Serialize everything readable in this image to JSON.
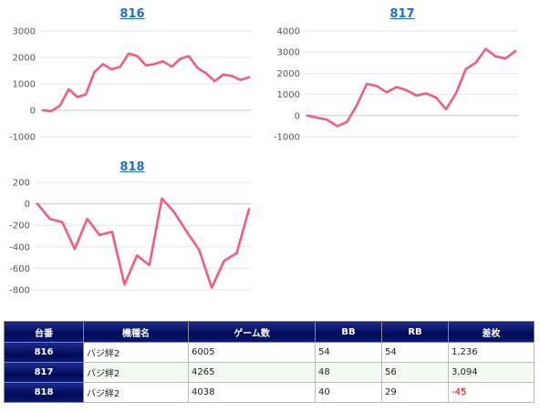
{
  "colors": {
    "line": "#f25c7f",
    "title": "#1f6fd0",
    "header_bg": "#000a55",
    "negative": "#e00000"
  },
  "chart_data": [
    {
      "type": "line",
      "title": "816",
      "ylim": [
        -1000,
        3000
      ],
      "yticks": [
        -1000,
        0,
        1000,
        2000,
        3000
      ],
      "grid": true,
      "series": [
        {
          "values": [
            0,
            -30,
            180,
            800,
            500,
            600,
            1450,
            1750,
            1550,
            1650,
            2150,
            2050,
            1700,
            1750,
            1850,
            1650,
            1950,
            2050,
            1600,
            1400,
            1100,
            1350,
            1300,
            1150,
            1250
          ]
        }
      ]
    },
    {
      "type": "line",
      "title": "817",
      "ylim": [
        -1000,
        4000
      ],
      "yticks": [
        -1000,
        0,
        1000,
        2000,
        3000,
        4000
      ],
      "grid": true,
      "series": [
        {
          "values": [
            0,
            -100,
            -200,
            -500,
            -300,
            500,
            1500,
            1400,
            1100,
            1350,
            1200,
            950,
            1050,
            850,
            300,
            1050,
            2200,
            2500,
            3150,
            2800,
            2700,
            3050
          ]
        }
      ]
    },
    {
      "type": "line",
      "title": "818",
      "ylim": [
        -800,
        200
      ],
      "yticks": [
        -800,
        -600,
        -400,
        -200,
        0,
        200
      ],
      "grid": true,
      "series": [
        {
          "values": [
            0,
            -140,
            -170,
            -420,
            -140,
            -290,
            -260,
            -750,
            -480,
            -570,
            50,
            -80,
            -260,
            -430,
            -780,
            -530,
            -460,
            -50
          ]
        }
      ]
    }
  ],
  "table": {
    "headers": [
      "台番",
      "機種名",
      "ゲーム数",
      "BB",
      "RB",
      "差枚"
    ],
    "rows": [
      {
        "unit": "816",
        "model": "バジ絆2",
        "games": "6005",
        "bb": "54",
        "rb": "54",
        "diff": "1,236",
        "negative": false
      },
      {
        "unit": "817",
        "model": "バジ絆2",
        "games": "4265",
        "bb": "48",
        "rb": "56",
        "diff": "3,094",
        "negative": false
      },
      {
        "unit": "818",
        "model": "バジ絆2",
        "games": "4038",
        "bb": "40",
        "rb": "29",
        "diff": "-45",
        "negative": true
      }
    ]
  }
}
